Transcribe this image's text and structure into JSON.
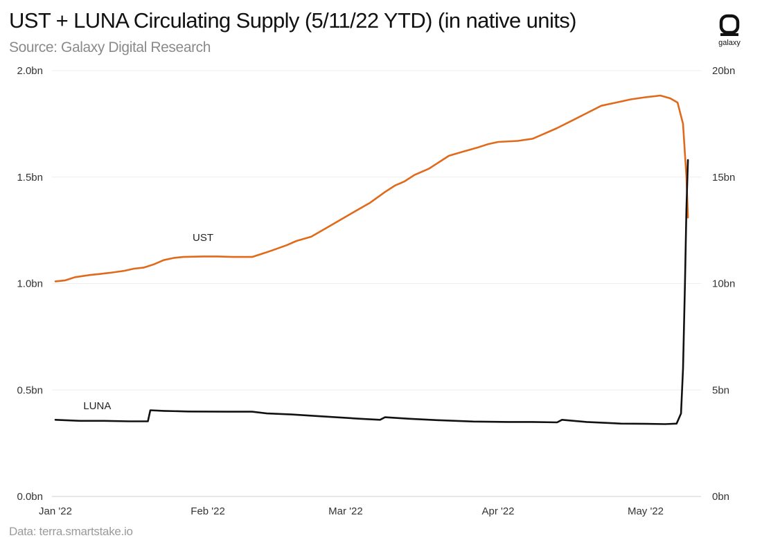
{
  "title": "UST + LUNA Circulating Supply (5/11/22 YTD) (in native units)",
  "subtitle": "Source: Galaxy Digital Research",
  "footer": "Data: terra.smartstake.io",
  "logo_text": "galaxy",
  "colors": {
    "ust": "#E0691A",
    "luna": "#111111",
    "grid": "#eeeeee"
  },
  "chart_data": {
    "type": "line",
    "title": "UST + LUNA Circulating Supply (5/11/22 YTD) (in native units)",
    "x_axis": {
      "start": "2022-01-01",
      "end": "2022-05-11",
      "ticks": [
        {
          "label": "Jan '22",
          "day": 0
        },
        {
          "label": "Feb '22",
          "day": 31
        },
        {
          "label": "Mar '22",
          "day": 59
        },
        {
          "label": "Apr '22",
          "day": 90
        },
        {
          "label": "May '22",
          "day": 120
        }
      ]
    },
    "y_left": {
      "range": [
        0,
        2.0
      ],
      "unit": "bn",
      "ticks": [
        {
          "value": 0,
          "label": "0.0bn"
        },
        {
          "value": 0.5,
          "label": "0.5bn"
        },
        {
          "value": 1.0,
          "label": "1.0bn"
        },
        {
          "value": 1.5,
          "label": "1.5bn"
        },
        {
          "value": 2.0,
          "label": "2.0bn"
        }
      ]
    },
    "y_right": {
      "range": [
        0,
        20
      ],
      "unit": "bn",
      "ticks": [
        {
          "value": 0,
          "label": "0bn"
        },
        {
          "value": 5,
          "label": "5bn"
        },
        {
          "value": 10,
          "label": "10bn"
        },
        {
          "value": 15,
          "label": "15bn"
        },
        {
          "value": 20,
          "label": "20bn"
        }
      ]
    },
    "series": [
      {
        "name": "UST",
        "label": "UST",
        "axis": "left",
        "unit": "bn UST",
        "points": [
          [
            0,
            1.01
          ],
          [
            2,
            1.015
          ],
          [
            4,
            1.03
          ],
          [
            7,
            1.04
          ],
          [
            9,
            1.045
          ],
          [
            11,
            1.05
          ],
          [
            14,
            1.06
          ],
          [
            16,
            1.07
          ],
          [
            18,
            1.075
          ],
          [
            20,
            1.09
          ],
          [
            22,
            1.11
          ],
          [
            24,
            1.12
          ],
          [
            26,
            1.125
          ],
          [
            30,
            1.127
          ],
          [
            33,
            1.127
          ],
          [
            36,
            1.125
          ],
          [
            40,
            1.125
          ],
          [
            42,
            1.14
          ],
          [
            44,
            1.155
          ],
          [
            47,
            1.18
          ],
          [
            49,
            1.2
          ],
          [
            52,
            1.22
          ],
          [
            55,
            1.26
          ],
          [
            58,
            1.3
          ],
          [
            61,
            1.34
          ],
          [
            64,
            1.38
          ],
          [
            67,
            1.43
          ],
          [
            69,
            1.46
          ],
          [
            71,
            1.48
          ],
          [
            73,
            1.51
          ],
          [
            76,
            1.54
          ],
          [
            78,
            1.57
          ],
          [
            80,
            1.6
          ],
          [
            83,
            1.62
          ],
          [
            86,
            1.64
          ],
          [
            88,
            1.655
          ],
          [
            90,
            1.665
          ],
          [
            94,
            1.67
          ],
          [
            97,
            1.68
          ],
          [
            99,
            1.7
          ],
          [
            102,
            1.73
          ],
          [
            105,
            1.765
          ],
          [
            108,
            1.8
          ],
          [
            111,
            1.835
          ],
          [
            114,
            1.85
          ],
          [
            117,
            1.865
          ],
          [
            120,
            1.875
          ],
          [
            123,
            1.883
          ],
          [
            125,
            1.87
          ],
          [
            126.5,
            1.85
          ],
          [
            127.6,
            1.75
          ],
          [
            128.3,
            1.5
          ],
          [
            128.6,
            1.31
          ]
        ]
      },
      {
        "name": "LUNA",
        "label": "LUNA",
        "axis": "right",
        "unit": "bn LUNA",
        "points": [
          [
            0,
            3.6
          ],
          [
            5,
            3.55
          ],
          [
            10,
            3.55
          ],
          [
            15,
            3.53
          ],
          [
            18.8,
            3.53
          ],
          [
            19.3,
            4.05
          ],
          [
            22,
            4.02
          ],
          [
            27,
            3.99
          ],
          [
            35,
            3.98
          ],
          [
            40,
            3.98
          ],
          [
            43,
            3.9
          ],
          [
            48,
            3.85
          ],
          [
            55,
            3.75
          ],
          [
            62,
            3.65
          ],
          [
            66,
            3.6
          ],
          [
            67,
            3.72
          ],
          [
            72,
            3.65
          ],
          [
            78,
            3.58
          ],
          [
            85,
            3.52
          ],
          [
            92,
            3.5
          ],
          [
            97,
            3.5
          ],
          [
            102,
            3.48
          ],
          [
            103,
            3.6
          ],
          [
            108,
            3.5
          ],
          [
            115,
            3.42
          ],
          [
            120,
            3.41
          ],
          [
            124,
            3.4
          ],
          [
            126.3,
            3.42
          ],
          [
            127.2,
            3.9
          ],
          [
            127.6,
            6.0
          ],
          [
            128.0,
            10.0
          ],
          [
            128.3,
            13.5
          ],
          [
            128.6,
            15.8
          ]
        ]
      }
    ]
  }
}
